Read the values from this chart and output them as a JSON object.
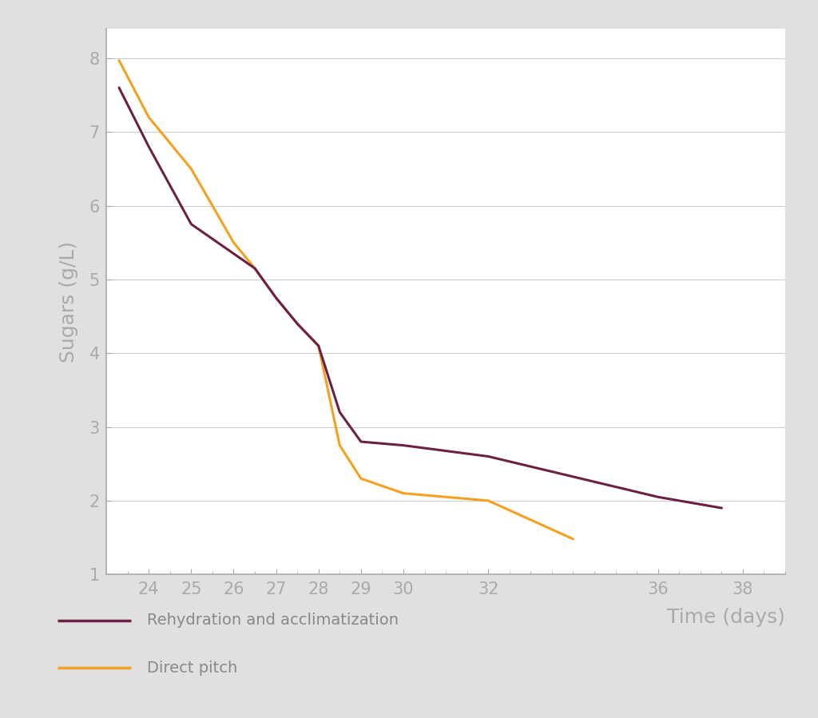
{
  "xlabel": "Time (days)",
  "ylabel": "Sugars (g/L)",
  "figure_bg": "#e0e0e0",
  "plot_area_bg": "#ffffff",
  "legend_area_bg": "#d8d8d8",
  "rehydration_x": [
    23.3,
    24,
    25,
    26,
    26.5,
    27,
    27.5,
    28,
    28.5,
    29,
    30,
    32,
    36,
    37.5
  ],
  "rehydration_y": [
    7.6,
    6.8,
    5.75,
    5.35,
    5.15,
    4.75,
    4.4,
    4.1,
    3.2,
    2.8,
    2.75,
    2.6,
    2.05,
    1.9
  ],
  "direct_x": [
    23.3,
    24,
    25,
    26,
    26.5,
    27,
    27.5,
    28,
    28.5,
    29,
    30,
    32,
    34
  ],
  "direct_y": [
    7.97,
    7.2,
    6.5,
    5.5,
    5.15,
    4.75,
    4.4,
    4.1,
    2.75,
    2.3,
    2.1,
    2.0,
    1.48
  ],
  "rehydration_color": "#6B2142",
  "direct_color": "#F5A020",
  "line_width": 2.2,
  "xlim_min": 23.0,
  "xlim_max": 39.0,
  "ylim_min": 1.0,
  "ylim_max": 8.4,
  "xticks": [
    24,
    25,
    26,
    27,
    28,
    29,
    30,
    32,
    36,
    38
  ],
  "yticks": [
    1,
    2,
    3,
    4,
    5,
    6,
    7,
    8
  ],
  "tick_color": "#aaaaaa",
  "label_color": "#aaaaaa",
  "axis_color": "#aaaaaa",
  "grid_color": "#cccccc",
  "legend_text_color": "#888888",
  "legend_rehydration": "Rehydration and acclimatization",
  "legend_direct": "Direct pitch",
  "legend_fontsize": 14,
  "axis_label_fontsize": 18,
  "tick_fontsize": 15
}
